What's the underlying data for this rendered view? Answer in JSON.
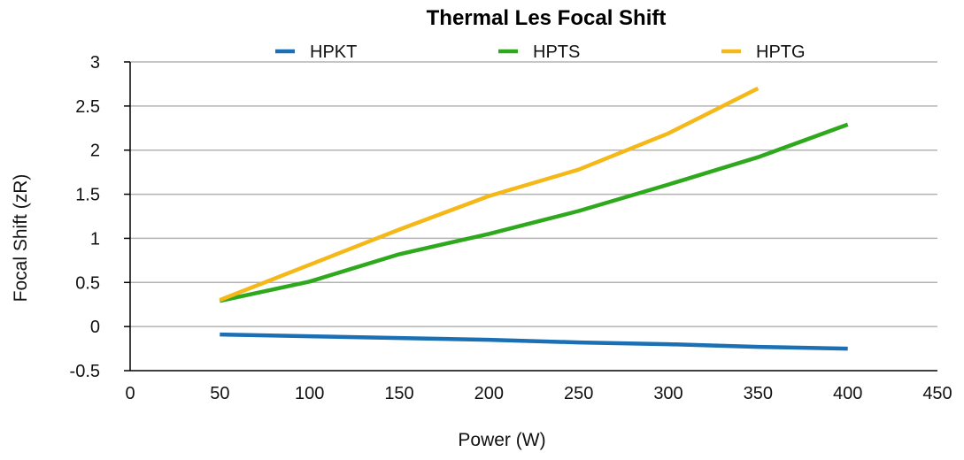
{
  "chart_data": {
    "type": "line",
    "title": "Thermal Les Focal Shift",
    "xlabel": "Power (W)",
    "ylabel": "Focal Shift (zR)",
    "xlim": [
      0,
      450
    ],
    "ylim": [
      -0.5,
      3
    ],
    "xticks": [
      0,
      50,
      100,
      150,
      200,
      250,
      300,
      350,
      400,
      450
    ],
    "yticks": [
      -0.5,
      0,
      0.5,
      1,
      1.5,
      2,
      2.5,
      3
    ],
    "xtick_labels": [
      "0",
      "50",
      "100",
      "150",
      "200",
      "250",
      "300",
      "350",
      "400",
      "450"
    ],
    "ytick_labels": [
      "-0.5",
      "0",
      "0.5",
      "1",
      "1.5",
      "2",
      "2.5",
      "3"
    ],
    "grid": "horizontal",
    "legend": "top",
    "series": [
      {
        "name": "HPKT",
        "color": "#1a6fb5",
        "x": [
          50,
          100,
          150,
          200,
          250,
          300,
          350,
          400
        ],
        "y": [
          -0.09,
          -0.11,
          -0.13,
          -0.15,
          -0.18,
          -0.2,
          -0.23,
          -0.25
        ]
      },
      {
        "name": "HPTS",
        "color": "#2ea81c",
        "x": [
          50,
          100,
          150,
          200,
          250,
          300,
          350,
          400
        ],
        "y": [
          0.29,
          0.51,
          0.82,
          1.05,
          1.31,
          1.61,
          1.92,
          2.29
        ]
      },
      {
        "name": "HPTG",
        "color": "#f5b819",
        "x": [
          50,
          100,
          150,
          200,
          250,
          300,
          350
        ],
        "y": [
          0.3,
          0.7,
          1.1,
          1.48,
          1.78,
          2.19,
          2.7
        ]
      }
    ]
  }
}
